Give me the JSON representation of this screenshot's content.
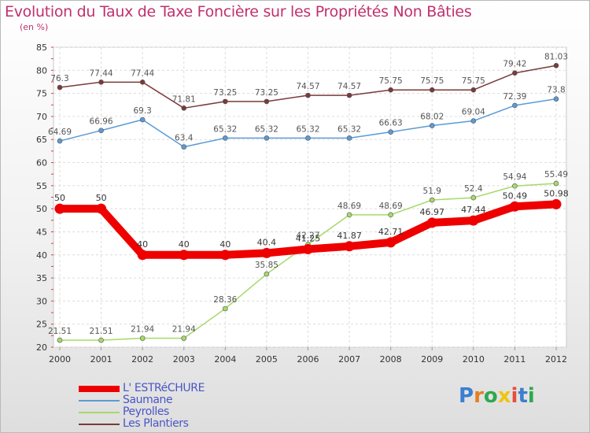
{
  "chart_data": {
    "type": "line",
    "title": "Evolution du Taux de Taxe Foncière sur les Propriétés Non Bâties",
    "unit_label": "(en %)",
    "xlabel": "",
    "ylabel": "(en %)",
    "ylim": [
      20,
      85
    ],
    "yticks": [
      20,
      25,
      30,
      35,
      40,
      45,
      50,
      55,
      60,
      65,
      70,
      75,
      80,
      85
    ],
    "categories": [
      "2000",
      "2001",
      "2002",
      "2003",
      "2004",
      "2005",
      "2006",
      "2007",
      "2008",
      "2009",
      "2010",
      "2011",
      "2012"
    ],
    "grid": true,
    "legend_position": "bottom-left",
    "series": [
      {
        "name": "L' ESTRéCHURE",
        "color": "#ee0000",
        "emphasis": true,
        "values": [
          50,
          50,
          40,
          40,
          40,
          40.4,
          41.25,
          41.87,
          42.71,
          46.97,
          47.44,
          50.49,
          50.98
        ],
        "labels": [
          "50",
          "50",
          "40",
          "40",
          "40",
          "40.4",
          "41.25",
          "41.87",
          "42.71",
          "46.97",
          "47.44",
          "50.49",
          "50.98"
        ]
      },
      {
        "name": "Saumane",
        "color": "#5b9bd5",
        "values": [
          64.69,
          66.96,
          69.3,
          63.4,
          65.32,
          65.32,
          65.32,
          65.32,
          66.63,
          68.02,
          69.04,
          72.39,
          73.8
        ],
        "labels": [
          "64.69",
          "66.96",
          "69.3",
          "63.4",
          "65.32",
          "65.32",
          "65.32",
          "65.32",
          "66.63",
          "68.02",
          "69.04",
          "72.39",
          "73.8"
        ]
      },
      {
        "name": "Peyrolles",
        "color": "#a6d96a",
        "values": [
          21.51,
          21.51,
          21.94,
          21.94,
          28.36,
          35.85,
          42.27,
          48.69,
          48.69,
          51.9,
          52.4,
          54.94,
          55.49
        ],
        "labels": [
          "21.51",
          "21.51",
          "21.94",
          "21.94",
          "28.36",
          "35.85",
          "42.27",
          "48.69",
          "48.69",
          "51.9",
          "52.4",
          "54.94",
          "55.49"
        ]
      },
      {
        "name": "Les Plantiers",
        "color": "#7a3a3a",
        "values": [
          76.3,
          77.44,
          77.44,
          71.81,
          73.25,
          73.25,
          74.57,
          74.57,
          75.75,
          75.75,
          75.75,
          79.42,
          81.03
        ],
        "labels": [
          "76.3",
          "77.44",
          "77.44",
          "71.81",
          "73.25",
          "73.25",
          "74.57",
          "74.57",
          "75.75",
          "75.75",
          "75.75",
          "79.42",
          "81.03"
        ]
      }
    ]
  },
  "logo": {
    "text": "Proxiti",
    "letters": [
      "P",
      "r",
      "o",
      "x",
      "i",
      "t",
      "i"
    ],
    "colors": [
      "#3a7fd0",
      "#e67e22",
      "#2ea84f",
      "#f1c40f",
      "#e74c3c",
      "#3a7fd0",
      "#2ea84f"
    ]
  }
}
